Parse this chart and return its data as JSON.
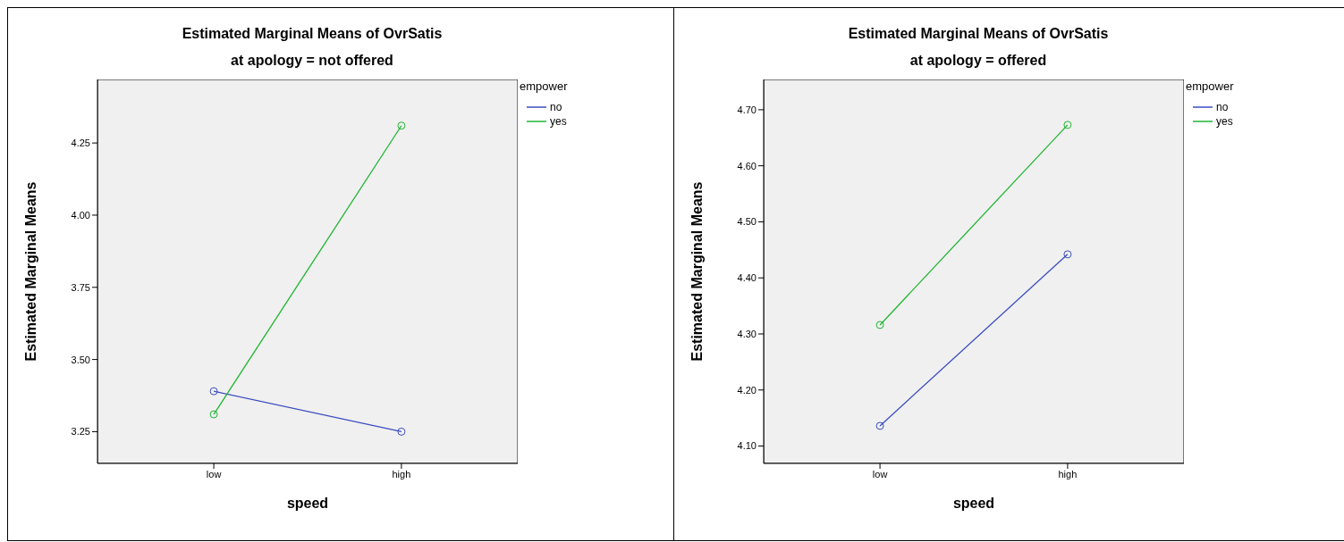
{
  "chart_data": [
    {
      "type": "line",
      "title": "Estimated Marginal Means of OvrSatis",
      "subtitle": "at apology = not offered",
      "xlabel": "speed",
      "ylabel": "Estimated Marginal Means",
      "legend_title": "empower",
      "categories": [
        "low",
        "high"
      ],
      "series": [
        {
          "name": "no",
          "color": "#3b4cc0",
          "values": [
            3.39,
            3.25
          ]
        },
        {
          "name": "yes",
          "color": "#21b534",
          "values": [
            3.31,
            4.31
          ]
        }
      ],
      "ylim": [
        3.14,
        4.47
      ],
      "yticks": [
        {
          "value": 3.25,
          "label": "3.25"
        },
        {
          "value": 3.5,
          "label": "3.50"
        },
        {
          "value": 3.75,
          "label": "3.75"
        },
        {
          "value": 4,
          "label": "4.00"
        },
        {
          "value": 4.25,
          "label": "4.25"
        }
      ],
      "grid": false,
      "legend": "right",
      "marker": "circle",
      "line_style": "solid"
    },
    {
      "type": "line",
      "title": "Estimated Marginal Means of OvrSatis",
      "subtitle": "at apology = offered",
      "xlabel": "speed",
      "ylabel": "Estimated Marginal Means",
      "legend_title": "empower",
      "categories": [
        "low",
        "high"
      ],
      "series": [
        {
          "name": "no",
          "color": "#3b4cc0",
          "values": [
            4.136,
            4.442
          ]
        },
        {
          "name": "yes",
          "color": "#21b534",
          "values": [
            4.316,
            4.673
          ]
        }
      ],
      "ylim": [
        4.069,
        4.754
      ],
      "yticks": [
        {
          "value": 4.1,
          "label": "4.10"
        },
        {
          "value": 4.2,
          "label": "4.20"
        },
        {
          "value": 4.3,
          "label": "4.30"
        },
        {
          "value": 4.4,
          "label": "4.40"
        },
        {
          "value": 4.5,
          "label": "4.50"
        },
        {
          "value": 4.6,
          "label": "4.60"
        },
        {
          "value": 4.7,
          "label": "4.70"
        }
      ],
      "grid": false,
      "legend": "right",
      "marker": "circle",
      "line_style": "solid"
    }
  ]
}
